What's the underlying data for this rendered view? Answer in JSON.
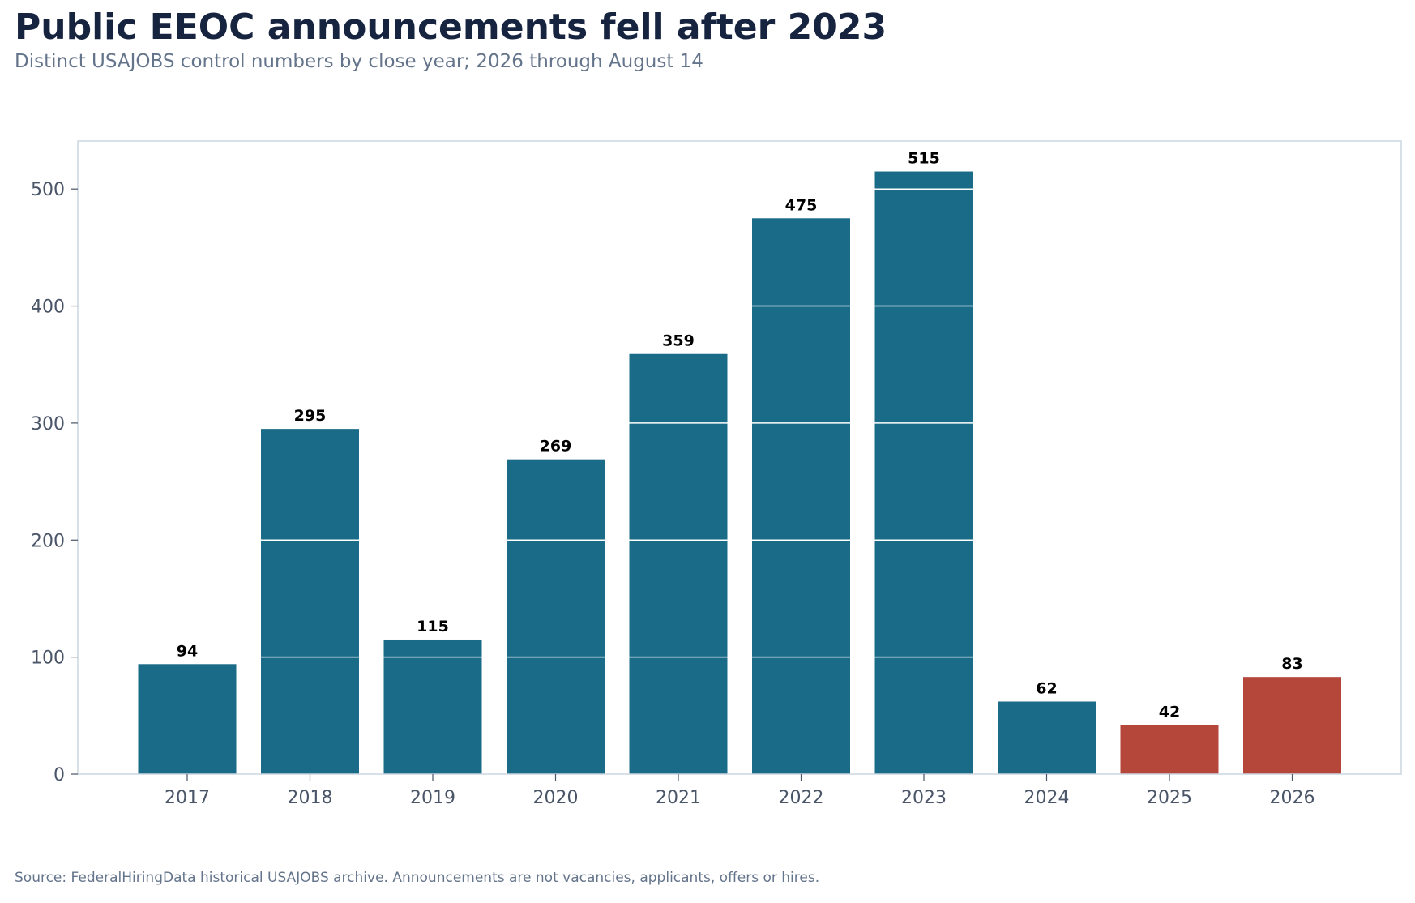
{
  "chart_data": {
    "type": "bar",
    "title": "Public EEOC announcements fell after 2023",
    "subtitle": "Distinct USAJOBS control numbers by close year; 2026 through August 14",
    "source": "Source: FederalHiringData historical USAJOBS archive. Announcements are not vacancies, applicants, offers or hires.",
    "categories": [
      "2017",
      "2018",
      "2019",
      "2020",
      "2021",
      "2022",
      "2023",
      "2024",
      "2025",
      "2026"
    ],
    "values": [
      94,
      295,
      115,
      269,
      359,
      475,
      515,
      62,
      42,
      83
    ],
    "bar_colors": [
      "#1a6b87",
      "#1a6b87",
      "#1a6b87",
      "#1a6b87",
      "#1a6b87",
      "#1a6b87",
      "#1a6b87",
      "#1a6b87",
      "#b5463a",
      "#b5463a"
    ],
    "yticks": [
      0,
      100,
      200,
      300,
      400,
      500
    ],
    "ylim": [
      0,
      541
    ],
    "xlabel": "",
    "ylabel": "",
    "grid": true,
    "legend": false,
    "colors": {
      "primary": "#1a6b87",
      "highlight": "#b5463a",
      "title": "#172440",
      "muted": "#64748b",
      "axis": "#cbd5e1",
      "grid": "#e5e7eb"
    }
  }
}
